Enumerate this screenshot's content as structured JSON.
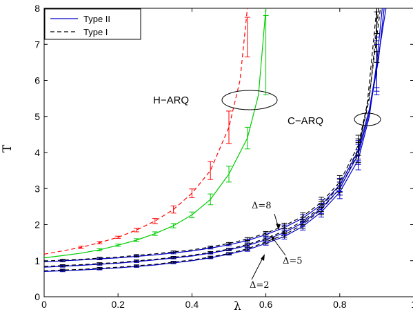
{
  "chart_data": {
    "type": "line",
    "xlabel": "λ",
    "ylabel": "T",
    "xlim": [
      0,
      1
    ],
    "ylim": [
      0,
      8
    ],
    "xticks": [
      0,
      0.2,
      0.4,
      0.6,
      0.8,
      1
    ],
    "xtick_labels": [
      "0",
      "0.2",
      "0.4",
      "0.6",
      "0.8",
      "1"
    ],
    "yticks": [
      0,
      1,
      2,
      3,
      4,
      5,
      6,
      7,
      8
    ],
    "ytick_labels": [
      "0",
      "1",
      "2",
      "3",
      "4",
      "5",
      "6",
      "7",
      "8"
    ],
    "legend": {
      "position": "top-left",
      "entries": [
        {
          "label": "Type II",
          "style": "solid",
          "color": "#0000cc"
        },
        {
          "label": "Type I",
          "style": "dashed",
          "color": "#000000"
        }
      ]
    },
    "annotations": {
      "harq": "H−ARQ",
      "carq": "C−ARQ",
      "delta8": "Δ=8",
      "delta5": "Δ=5",
      "delta2": "Δ=2"
    },
    "series": [
      {
        "group": "H-ARQ",
        "style": "dashed",
        "color": "#ff0000",
        "x": [
          0,
          0.05,
          0.1,
          0.15,
          0.2,
          0.25,
          0.3,
          0.35,
          0.4,
          0.45,
          0.5,
          0.53,
          0.55
        ],
        "y": [
          1.18,
          1.27,
          1.37,
          1.5,
          1.65,
          1.85,
          2.1,
          2.42,
          2.87,
          3.5,
          4.7,
          6.0,
          8.0
        ],
        "err_x": [
          0.1,
          0.15,
          0.2,
          0.25,
          0.3,
          0.35,
          0.4,
          0.45,
          0.5,
          0.55
        ],
        "err_y": [
          1.37,
          1.5,
          1.65,
          1.85,
          2.1,
          2.42,
          2.87,
          3.5,
          4.7,
          7.2
        ],
        "err_h": [
          0.03,
          0.03,
          0.03,
          0.05,
          0.07,
          0.1,
          0.12,
          0.25,
          0.45,
          0.55
        ]
      },
      {
        "group": "H-ARQ",
        "style": "solid",
        "color": "#00cc00",
        "x": [
          0,
          0.05,
          0.1,
          0.15,
          0.2,
          0.25,
          0.3,
          0.35,
          0.4,
          0.45,
          0.5,
          0.55,
          0.58,
          0.6
        ],
        "y": [
          1.08,
          1.14,
          1.21,
          1.3,
          1.43,
          1.57,
          1.75,
          1.97,
          2.27,
          2.7,
          3.4,
          4.4,
          5.6,
          8.0
        ],
        "err_x": [
          0.15,
          0.2,
          0.25,
          0.3,
          0.35,
          0.4,
          0.45,
          0.5,
          0.55,
          0.6
        ],
        "err_y": [
          1.3,
          1.43,
          1.57,
          1.75,
          1.97,
          2.27,
          2.7,
          3.4,
          4.4,
          6.7
        ],
        "err_h": [
          0.03,
          0.03,
          0.04,
          0.05,
          0.06,
          0.08,
          0.15,
          0.22,
          0.3,
          1.1
        ]
      },
      {
        "group": "C-ARQ",
        "style": "solid",
        "color": "#0000cc",
        "x": [
          0,
          0.1,
          0.2,
          0.3,
          0.4,
          0.45,
          0.5,
          0.55,
          0.6,
          0.65,
          0.7,
          0.75,
          0.8,
          0.85,
          0.88,
          0.9,
          0.915
        ],
        "y": [
          0.7,
          0.74,
          0.8,
          0.88,
          1.0,
          1.08,
          1.18,
          1.3,
          1.48,
          1.67,
          1.95,
          2.35,
          2.9,
          3.8,
          5.0,
          6.5,
          8.0
        ]
      },
      {
        "group": "C-ARQ",
        "style": "dashed",
        "color": "#000000",
        "x": [
          0,
          0.1,
          0.2,
          0.3,
          0.4,
          0.45,
          0.5,
          0.55,
          0.6,
          0.65,
          0.7,
          0.75,
          0.8,
          0.85,
          0.875,
          0.9
        ],
        "y": [
          0.72,
          0.76,
          0.82,
          0.9,
          1.02,
          1.1,
          1.2,
          1.33,
          1.52,
          1.72,
          2.0,
          2.42,
          3.0,
          4.0,
          5.4,
          8.0
        ]
      },
      {
        "group": "C-ARQ",
        "style": "solid",
        "color": "#0000cc",
        "x": [
          0,
          0.1,
          0.2,
          0.3,
          0.4,
          0.45,
          0.5,
          0.55,
          0.6,
          0.65,
          0.7,
          0.75,
          0.8,
          0.85,
          0.88,
          0.905,
          0.92
        ],
        "y": [
          0.82,
          0.87,
          0.93,
          1.02,
          1.13,
          1.21,
          1.3,
          1.42,
          1.58,
          1.78,
          2.05,
          2.45,
          3.0,
          3.95,
          5.1,
          6.6,
          8.0
        ]
      },
      {
        "group": "C-ARQ",
        "style": "dashed",
        "color": "#000000",
        "x": [
          0,
          0.1,
          0.2,
          0.3,
          0.4,
          0.45,
          0.5,
          0.55,
          0.6,
          0.65,
          0.7,
          0.75,
          0.8,
          0.85,
          0.88,
          0.905
        ],
        "y": [
          0.84,
          0.89,
          0.95,
          1.04,
          1.15,
          1.23,
          1.32,
          1.45,
          1.62,
          1.82,
          2.1,
          2.5,
          3.08,
          4.1,
          5.5,
          8.0
        ]
      },
      {
        "group": "C-ARQ",
        "style": "solid",
        "color": "#0000cc",
        "x": [
          0,
          0.1,
          0.2,
          0.3,
          0.4,
          0.45,
          0.5,
          0.55,
          0.6,
          0.65,
          0.7,
          0.75,
          0.8,
          0.85,
          0.88,
          0.905,
          0.925
        ],
        "y": [
          0.97,
          1.02,
          1.08,
          1.16,
          1.27,
          1.35,
          1.44,
          1.56,
          1.72,
          1.92,
          2.18,
          2.55,
          3.1,
          4.05,
          5.2,
          6.7,
          8.0
        ]
      },
      {
        "group": "C-ARQ",
        "style": "dashed",
        "color": "#000000",
        "x": [
          0,
          0.1,
          0.2,
          0.3,
          0.4,
          0.45,
          0.5,
          0.55,
          0.6,
          0.65,
          0.7,
          0.75,
          0.8,
          0.85,
          0.88,
          0.91
        ],
        "y": [
          0.99,
          1.04,
          1.1,
          1.19,
          1.3,
          1.38,
          1.48,
          1.6,
          1.76,
          1.97,
          2.23,
          2.62,
          3.18,
          4.2,
          5.6,
          8.0
        ]
      }
    ],
    "carq_errorbars": {
      "x": [
        0.55,
        0.6,
        0.65,
        0.7,
        0.75,
        0.8,
        0.85,
        0.9
      ],
      "h": [
        0.04,
        0.05,
        0.07,
        0.1,
        0.14,
        0.18,
        0.28,
        0.7
      ]
    }
  }
}
